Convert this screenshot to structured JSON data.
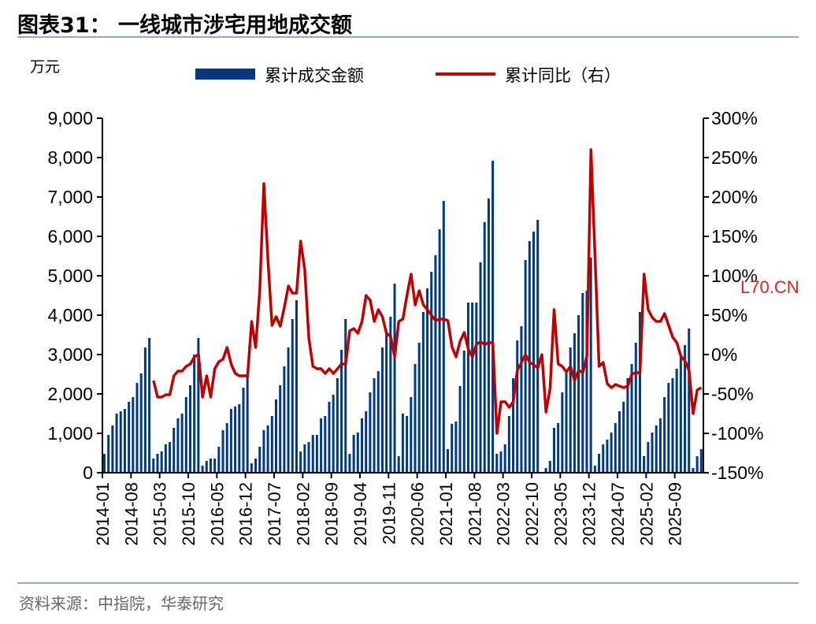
{
  "title": "图表31：  一线城市涉宅用地成交额",
  "unit": "万元",
  "source": "资料来源：中指院，华泰研究",
  "watermark": "L70.CN",
  "chart_data": {
    "type": "bar+line",
    "start_month": "2014-01",
    "legend": [
      "累计成交金额",
      "累计同比（右）"
    ],
    "legend_placement": "top",
    "colors": {
      "bar": "#003a80",
      "line": "#c00000"
    },
    "xticks": [
      "2014-01",
      "2014-08",
      "2015-03",
      "2015-10",
      "2016-05",
      "2016-12",
      "2017-07",
      "2018-02",
      "2018-09",
      "2019-04",
      "2019-11",
      "2020-06",
      "2021-01",
      "2021-08",
      "2022-03",
      "2022-10",
      "2023-05",
      "2023-12",
      "2024-07",
      "2025-02",
      "2025-09"
    ],
    "ylim_left": [
      0,
      9000
    ],
    "yticks_left": [
      "0",
      "1,000",
      "2,000",
      "3,000",
      "4,000",
      "5,000",
      "6,000",
      "7,000",
      "8,000",
      "9,000"
    ],
    "ylim_right": [
      -150,
      300
    ],
    "yticks_right": [
      "-150%",
      "-100%",
      "-50%",
      "0%",
      "50%",
      "100%",
      "150%",
      "200%",
      "250%",
      "300%"
    ],
    "series": [
      {
        "name": "累计成交金额",
        "kind": "bar",
        "axis": "left",
        "values": [
          480,
          960,
          1200,
          1500,
          1560,
          1620,
          1800,
          1920,
          2280,
          2520,
          3180,
          3420,
          360,
          480,
          540,
          720,
          780,
          1140,
          1380,
          1500,
          1920,
          2220,
          3000,
          3420,
          180,
          300,
          360,
          360,
          660,
          1080,
          1260,
          1620,
          1680,
          1740,
          2160,
          2460,
          240,
          360,
          660,
          1080,
          1200,
          1440,
          1860,
          2220,
          2700,
          3180,
          3900,
          4380,
          540,
          720,
          780,
          960,
          960,
          1380,
          1440,
          1800,
          1980,
          2400,
          3120,
          3900,
          480,
          960,
          1020,
          1380,
          1560,
          2040,
          2400,
          2580,
          3180,
          3540,
          3960,
          4800,
          420,
          1500,
          1440,
          1920,
          2760,
          3300,
          4080,
          4680,
          5100,
          5520,
          6180,
          6900,
          600,
          1240,
          1300,
          2200,
          3100,
          4320,
          4320,
          4320,
          5340,
          6360,
          6960,
          7920,
          480,
          540,
          720,
          1440,
          2400,
          3360,
          3720,
          5400,
          5880,
          6120,
          6420,
          null,
          120,
          300,
          1140,
          1260,
          2040,
          2600,
          3180,
          3540,
          4000,
          4560,
          4620,
          5460,
          180,
          480,
          720,
          840,
          1020,
          1260,
          1560,
          1800,
          2400,
          2760,
          3300,
          4080,
          420,
          780,
          1020,
          1200,
          1380,
          1920,
          2280,
          2400,
          2640,
          2940,
          3240,
          3660,
          120,
          420,
          600
        ]
      },
      {
        "name": "累计同比（右）",
        "kind": "line",
        "axis": "right",
        "start_month": "2015-01",
        "values": [
          -33,
          -54,
          -54,
          -51,
          -51,
          -27,
          -21,
          -21,
          -15,
          -12,
          -3,
          0,
          -54,
          -27,
          -54,
          -18,
          -9,
          -6,
          9,
          -12,
          -24,
          -27,
          -27,
          -27,
          42,
          9,
          81,
          217,
          120,
          37,
          48,
          36,
          60,
          87,
          78,
          78,
          144,
          108,
          21,
          -15,
          -18,
          -18,
          -24,
          -18,
          -24,
          -18,
          -12,
          -12,
          30,
          33,
          27,
          42,
          75,
          69,
          42,
          57,
          48,
          27,
          23,
          -3,
          42,
          45,
          75,
          102,
          63,
          81,
          63,
          57,
          50,
          43,
          45,
          45,
          43,
          10,
          -3,
          17,
          28,
          7,
          -3,
          13,
          16,
          13,
          15,
          15,
          -100,
          -60,
          -60,
          -67,
          -60,
          -20,
          -10,
          0,
          -10,
          -13,
          -17,
          0,
          -73,
          -43,
          57,
          -12,
          -15,
          -22,
          -15,
          -33,
          -20,
          -23,
          -2,
          260,
          123,
          -15,
          -10,
          -37,
          -42,
          -38,
          -40,
          -42,
          -40,
          -25,
          -23,
          -23,
          102,
          57,
          47,
          42,
          42,
          52,
          37,
          22,
          15,
          -2,
          -8,
          -20,
          -75,
          -45,
          -42
        ]
      }
    ]
  }
}
